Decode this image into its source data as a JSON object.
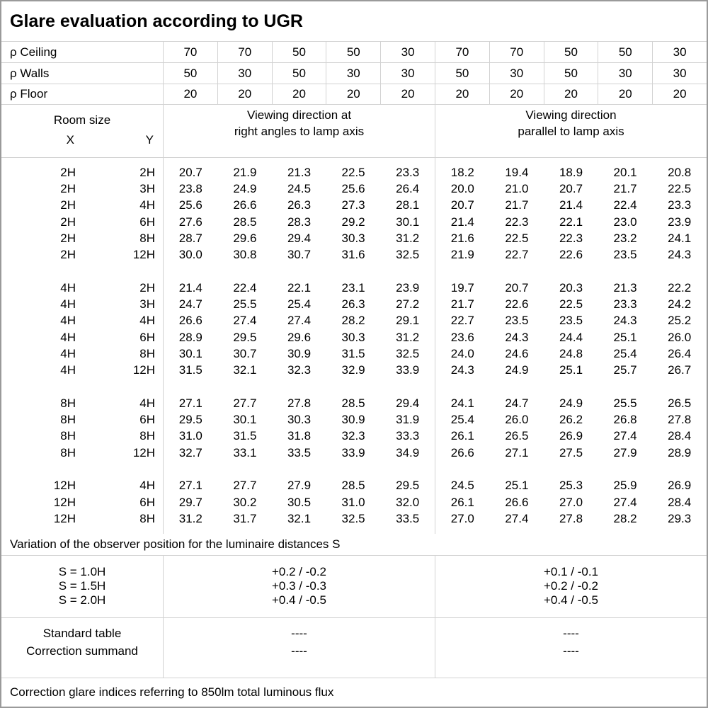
{
  "title": "Glare evaluation according to UGR",
  "colors": {
    "background": "#ffffff",
    "text": "#000000",
    "outer_border": "#9a9a9a",
    "inner_border": "#d2d2d2"
  },
  "surface_reflectances": {
    "rows": [
      {
        "label": "ρ Ceiling",
        "values": [
          "70",
          "70",
          "50",
          "50",
          "30",
          "70",
          "70",
          "50",
          "50",
          "30"
        ]
      },
      {
        "label": "ρ Walls",
        "values": [
          "50",
          "30",
          "50",
          "30",
          "30",
          "50",
          "30",
          "50",
          "30",
          "30"
        ]
      },
      {
        "label": "ρ Floor",
        "values": [
          "20",
          "20",
          "20",
          "20",
          "20",
          "20",
          "20",
          "20",
          "20",
          "20"
        ]
      }
    ]
  },
  "header": {
    "room_size_label": "Room size",
    "x_label": "X",
    "y_label": "Y",
    "crosswise_line1": "Viewing direction at",
    "crosswise_line2": "right angles to lamp axis",
    "parallel_line1": "Viewing direction",
    "parallel_line2": "parallel to lamp axis"
  },
  "ugr_blocks": [
    {
      "rows": [
        {
          "x": "2H",
          "y": "2H",
          "crosswise": [
            "20.7",
            "21.9",
            "21.3",
            "22.5",
            "23.3"
          ],
          "parallel": [
            "18.2",
            "19.4",
            "18.9",
            "20.1",
            "20.8"
          ]
        },
        {
          "x": "2H",
          "y": "3H",
          "crosswise": [
            "23.8",
            "24.9",
            "24.5",
            "25.6",
            "26.4"
          ],
          "parallel": [
            "20.0",
            "21.0",
            "20.7",
            "21.7",
            "22.5"
          ]
        },
        {
          "x": "2H",
          "y": "4H",
          "crosswise": [
            "25.6",
            "26.6",
            "26.3",
            "27.3",
            "28.1"
          ],
          "parallel": [
            "20.7",
            "21.7",
            "21.4",
            "22.4",
            "23.3"
          ]
        },
        {
          "x": "2H",
          "y": "6H",
          "crosswise": [
            "27.6",
            "28.5",
            "28.3",
            "29.2",
            "30.1"
          ],
          "parallel": [
            "21.4",
            "22.3",
            "22.1",
            "23.0",
            "23.9"
          ]
        },
        {
          "x": "2H",
          "y": "8H",
          "crosswise": [
            "28.7",
            "29.6",
            "29.4",
            "30.3",
            "31.2"
          ],
          "parallel": [
            "21.6",
            "22.5",
            "22.3",
            "23.2",
            "24.1"
          ]
        },
        {
          "x": "2H",
          "y": "12H",
          "crosswise": [
            "30.0",
            "30.8",
            "30.7",
            "31.6",
            "32.5"
          ],
          "parallel": [
            "21.9",
            "22.7",
            "22.6",
            "23.5",
            "24.3"
          ]
        }
      ]
    },
    {
      "rows": [
        {
          "x": "4H",
          "y": "2H",
          "crosswise": [
            "21.4",
            "22.4",
            "22.1",
            "23.1",
            "23.9"
          ],
          "parallel": [
            "19.7",
            "20.7",
            "20.3",
            "21.3",
            "22.2"
          ]
        },
        {
          "x": "4H",
          "y": "3H",
          "crosswise": [
            "24.7",
            "25.5",
            "25.4",
            "26.3",
            "27.2"
          ],
          "parallel": [
            "21.7",
            "22.6",
            "22.5",
            "23.3",
            "24.2"
          ]
        },
        {
          "x": "4H",
          "y": "4H",
          "crosswise": [
            "26.6",
            "27.4",
            "27.4",
            "28.2",
            "29.1"
          ],
          "parallel": [
            "22.7",
            "23.5",
            "23.5",
            "24.3",
            "25.2"
          ]
        },
        {
          "x": "4H",
          "y": "6H",
          "crosswise": [
            "28.9",
            "29.5",
            "29.6",
            "30.3",
            "31.2"
          ],
          "parallel": [
            "23.6",
            "24.3",
            "24.4",
            "25.1",
            "26.0"
          ]
        },
        {
          "x": "4H",
          "y": "8H",
          "crosswise": [
            "30.1",
            "30.7",
            "30.9",
            "31.5",
            "32.5"
          ],
          "parallel": [
            "24.0",
            "24.6",
            "24.8",
            "25.4",
            "26.4"
          ]
        },
        {
          "x": "4H",
          "y": "12H",
          "crosswise": [
            "31.5",
            "32.1",
            "32.3",
            "32.9",
            "33.9"
          ],
          "parallel": [
            "24.3",
            "24.9",
            "25.1",
            "25.7",
            "26.7"
          ]
        }
      ]
    },
    {
      "rows": [
        {
          "x": "8H",
          "y": "4H",
          "crosswise": [
            "27.1",
            "27.7",
            "27.8",
            "28.5",
            "29.4"
          ],
          "parallel": [
            "24.1",
            "24.7",
            "24.9",
            "25.5",
            "26.5"
          ]
        },
        {
          "x": "8H",
          "y": "6H",
          "crosswise": [
            "29.5",
            "30.1",
            "30.3",
            "30.9",
            "31.9"
          ],
          "parallel": [
            "25.4",
            "26.0",
            "26.2",
            "26.8",
            "27.8"
          ]
        },
        {
          "x": "8H",
          "y": "8H",
          "crosswise": [
            "31.0",
            "31.5",
            "31.8",
            "32.3",
            "33.3"
          ],
          "parallel": [
            "26.1",
            "26.5",
            "26.9",
            "27.4",
            "28.4"
          ]
        },
        {
          "x": "8H",
          "y": "12H",
          "crosswise": [
            "32.7",
            "33.1",
            "33.5",
            "33.9",
            "34.9"
          ],
          "parallel": [
            "26.6",
            "27.1",
            "27.5",
            "27.9",
            "28.9"
          ]
        }
      ]
    },
    {
      "rows": [
        {
          "x": "12H",
          "y": "4H",
          "crosswise": [
            "27.1",
            "27.7",
            "27.9",
            "28.5",
            "29.5"
          ],
          "parallel": [
            "24.5",
            "25.1",
            "25.3",
            "25.9",
            "26.9"
          ]
        },
        {
          "x": "12H",
          "y": "6H",
          "crosswise": [
            "29.7",
            "30.2",
            "30.5",
            "31.0",
            "32.0"
          ],
          "parallel": [
            "26.1",
            "26.6",
            "27.0",
            "27.4",
            "28.4"
          ]
        },
        {
          "x": "12H",
          "y": "8H",
          "crosswise": [
            "31.2",
            "31.7",
            "32.1",
            "32.5",
            "33.5"
          ],
          "parallel": [
            "27.0",
            "27.4",
            "27.8",
            "28.2",
            "29.3"
          ]
        }
      ]
    }
  ],
  "variation_note": "Variation of the observer position for the luminaire distances S",
  "spacing_corrections": {
    "rows": [
      {
        "label": "S = 1.0H",
        "crosswise": "+0.2 / -0.2",
        "parallel": "+0.1 / -0.1"
      },
      {
        "label": "S = 1.5H",
        "crosswise": "+0.3 / -0.3",
        "parallel": "+0.2 / -0.2"
      },
      {
        "label": "S = 2.0H",
        "crosswise": "+0.4 / -0.5",
        "parallel": "+0.4 / -0.5"
      }
    ]
  },
  "summary": {
    "rows": [
      {
        "label": "Standard table",
        "crosswise": "----",
        "parallel": "----"
      },
      {
        "label": "Correction summand",
        "crosswise": "----",
        "parallel": "----"
      }
    ]
  },
  "footer_note": "Correction glare indices referring to 850lm total luminous flux"
}
